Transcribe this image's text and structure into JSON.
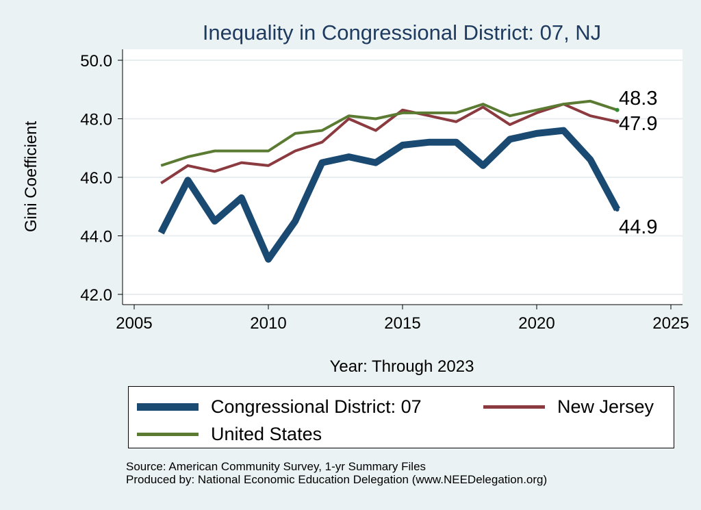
{
  "chart_data": {
    "type": "line",
    "title": "Inequality in Congressional District:  07, NJ",
    "xlabel": "Year: Through 2023",
    "ylabel": "Gini Coefficient",
    "xlim": [
      2005,
      2025
    ],
    "ylim": [
      42.0,
      50.0
    ],
    "x_ticks": [
      "2005",
      "2010",
      "2015",
      "2020",
      "2025"
    ],
    "y_ticks": [
      "42.0",
      "44.0",
      "46.0",
      "48.0",
      "50.0"
    ],
    "grid": "horizontal",
    "legend_position": "bottom",
    "x": [
      2006,
      2007,
      2008,
      2009,
      2010,
      2011,
      2012,
      2013,
      2014,
      2015,
      2016,
      2017,
      2018,
      2019,
      2020,
      2021,
      2022,
      2023
    ],
    "series": [
      {
        "name": "Congressional District:  07",
        "color": "#1a4a72",
        "values": [
          44.1,
          45.9,
          44.5,
          45.3,
          43.2,
          44.5,
          46.5,
          46.7,
          46.5,
          47.1,
          47.2,
          47.2,
          46.4,
          47.3,
          47.5,
          47.6,
          46.6,
          44.9
        ],
        "end_label": "44.9"
      },
      {
        "name": "New Jersey",
        "color": "#8b3a3f",
        "values": [
          45.8,
          46.4,
          46.2,
          46.5,
          46.4,
          46.9,
          47.2,
          48.0,
          47.6,
          48.3,
          48.1,
          47.9,
          48.4,
          47.8,
          48.2,
          48.5,
          48.1,
          47.9
        ],
        "end_label": "47.9"
      },
      {
        "name": "United States",
        "color": "#5b7a32",
        "values": [
          46.4,
          46.7,
          46.9,
          46.9,
          46.9,
          47.5,
          47.6,
          48.1,
          48.0,
          48.2,
          48.2,
          48.2,
          48.5,
          48.1,
          48.3,
          48.5,
          48.6,
          48.3
        ],
        "end_label": "48.3"
      }
    ]
  },
  "source": {
    "line1": "Source: American Community Survey, 1-yr Summary Files",
    "line2": "Produced by: National Economic Education Delegation (www.NEEDelegation.org)"
  }
}
